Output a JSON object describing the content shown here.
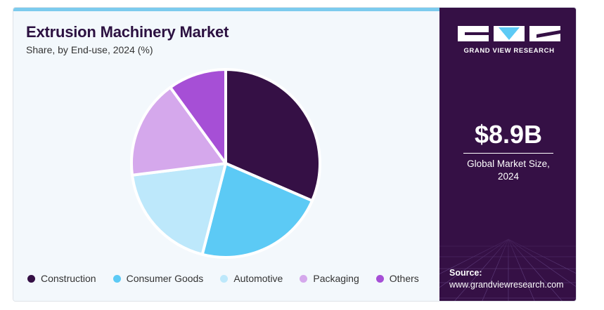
{
  "header": {
    "title": "Extrusion Machinery Market",
    "subtitle": "Share, by End-use, 2024 (%)"
  },
  "chart_data": {
    "type": "pie",
    "title": "Extrusion Machinery Market",
    "subtitle": "Share, by End-use, 2024 (%)",
    "categories": [
      "Construction",
      "Consumer Goods",
      "Automotive",
      "Packaging",
      "Others"
    ],
    "values": [
      31.5,
      22.5,
      19.0,
      17.0,
      10.0
    ],
    "colors": [
      "#351045",
      "#5ccaf5",
      "#bde8fb",
      "#d5a8ec",
      "#a64fd6"
    ],
    "start_angle_deg": 0,
    "direction": "clockwise",
    "legend_position": "bottom"
  },
  "legend": {
    "items": [
      {
        "label": "Construction",
        "color": "#351045"
      },
      {
        "label": "Consumer Goods",
        "color": "#5ccaf5"
      },
      {
        "label": "Automotive",
        "color": "#bde8fb"
      },
      {
        "label": "Packaging",
        "color": "#d5a8ec"
      },
      {
        "label": "Others",
        "color": "#a64fd6"
      }
    ]
  },
  "sidebar": {
    "logo_text": "GRAND VIEW RESEARCH",
    "market_value": "$8.9B",
    "market_label_line1": "Global Market Size,",
    "market_label_line2": "2024",
    "source_label": "Source:",
    "source_url": "www.grandviewresearch.com"
  },
  "colors": {
    "accent_bar": "#7ccbee",
    "sidebar_bg": "#351045",
    "panel_bg": "#f3f8fc"
  }
}
